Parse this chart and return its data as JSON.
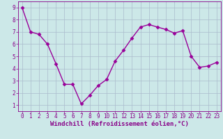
{
  "x": [
    0,
    1,
    2,
    3,
    4,
    5,
    6,
    7,
    8,
    9,
    10,
    11,
    12,
    13,
    14,
    15,
    16,
    17,
    18,
    19,
    20,
    21,
    22,
    23
  ],
  "y": [
    9.0,
    7.0,
    6.8,
    6.0,
    4.4,
    2.7,
    2.7,
    1.1,
    1.8,
    2.6,
    3.1,
    4.6,
    5.5,
    6.5,
    7.4,
    7.6,
    7.4,
    7.2,
    6.9,
    7.1,
    5.0,
    4.1,
    4.2,
    4.5
  ],
  "line_color": "#990099",
  "marker": "D",
  "markersize": 2.5,
  "bg_color": "#cce8e8",
  "grid_color": "#aabbcc",
  "xlabel": "Windchill (Refroidissement éolien,°C)",
  "xlim": [
    -0.5,
    23.5
  ],
  "ylim": [
    0.5,
    9.5
  ],
  "xticks": [
    0,
    1,
    2,
    3,
    4,
    5,
    6,
    7,
    8,
    9,
    10,
    11,
    12,
    13,
    14,
    15,
    16,
    17,
    18,
    19,
    20,
    21,
    22,
    23
  ],
  "yticks": [
    1,
    2,
    3,
    4,
    5,
    6,
    7,
    8,
    9
  ],
  "xlabel_fontsize": 6.5,
  "tick_fontsize": 5.5,
  "linewidth": 1.0,
  "label_color": "#880088"
}
